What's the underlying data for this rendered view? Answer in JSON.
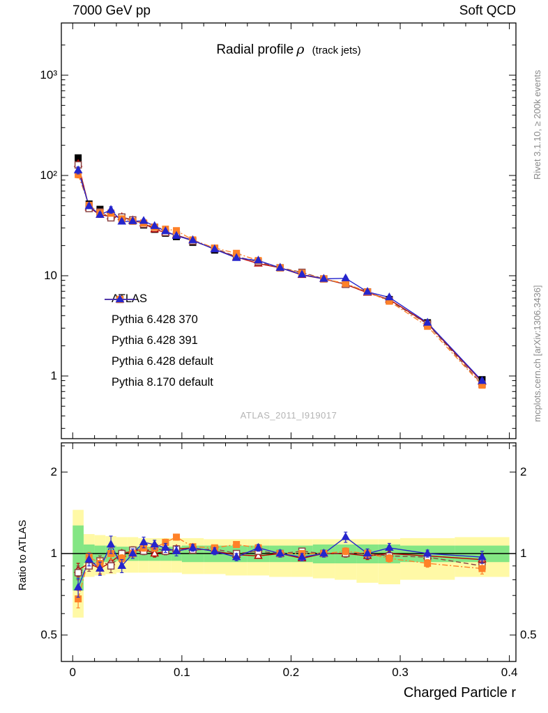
{
  "header": {
    "left": "7000 GeV pp",
    "right": "Soft QCD"
  },
  "side_texts": {
    "top_right": "Rivet 3.1.10, ≥ 200k events",
    "bottom_right": "mcplots.cern.ch [arXiv:1306.3436]"
  },
  "title": {
    "main": "Radial profile",
    "symbol": "ρ",
    "sub": "(track jets)"
  },
  "watermark": "ATLAS_2011_I919017",
  "axes": {
    "xlabel": "Charged Particle r",
    "ratio_ylabel": "Ratio to ATLAS",
    "x_ticks": [
      {
        "v": 0,
        "label": "0"
      },
      {
        "v": 0.1,
        "label": "0.1"
      },
      {
        "v": 0.2,
        "label": "0.2"
      },
      {
        "v": 0.3,
        "label": "0.3"
      },
      {
        "v": 0.4,
        "label": "0.4"
      }
    ],
    "y_ticks_main": [
      {
        "v": 1,
        "label": "1"
      },
      {
        "v": 10,
        "label": "10"
      },
      {
        "v": 100,
        "label": "10²"
      },
      {
        "v": 1000,
        "label": "10³"
      }
    ],
    "y_ticks_ratio": [
      {
        "v": 2,
        "label": "2"
      },
      {
        "v": 1,
        "label": "1"
      },
      {
        "v": 0.5,
        "label": "0.5"
      }
    ]
  },
  "chart_data": {
    "type": "line",
    "xlabel": "Charged Particle r",
    "xlim": [
      -0.0104,
      0.406
    ],
    "main_ylog": true,
    "main_ylim": [
      0.24,
      2900
    ],
    "ratio_ylog": true,
    "ratio_ylim": [
      0.4,
      2.6
    ],
    "x": [
      0.005,
      0.015,
      0.025,
      0.035,
      0.045,
      0.055,
      0.065,
      0.075,
      0.085,
      0.095,
      0.11,
      0.13,
      0.15,
      0.17,
      0.19,
      0.21,
      0.23,
      0.25,
      0.27,
      0.29,
      0.325,
      0.375
    ],
    "bin_edges": [
      0,
      0.01,
      0.02,
      0.03,
      0.04,
      0.05,
      0.06,
      0.07,
      0.08,
      0.09,
      0.1,
      0.12,
      0.14,
      0.16,
      0.18,
      0.2,
      0.22,
      0.24,
      0.26,
      0.28,
      0.3,
      0.35,
      0.4
    ],
    "reference": {
      "name": "ATLAS",
      "color": "#000000",
      "marker": "square-filled",
      "values": [
        150,
        52,
        46,
        42,
        38.5,
        35,
        32,
        29,
        26.5,
        24.5,
        21.5,
        18,
        15.5,
        13.5,
        12,
        10.6,
        9.3,
        8.2,
        6.9,
        5.8,
        3.4,
        0.92
      ],
      "rel_err": 0.04
    },
    "series": [
      {
        "name": "Pythia 6.428 370",
        "color": "#bb0000",
        "line": "solid",
        "marker": "triangle-open",
        "ratio": [
          0.87,
          0.92,
          0.88,
          0.93,
          1.0,
          1.02,
          1.04,
          1.0,
          1.02,
          1.04,
          1.05,
          1.02,
          0.99,
          0.98,
          1.0,
          0.96,
          1.0,
          1.0,
          0.98,
          1.0,
          0.98,
          0.95
        ],
        "ratio_err": [
          0.05,
          0.04,
          0.04,
          0.05,
          0.03,
          0.03,
          0.03,
          0.03,
          0.03,
          0.03,
          0.02,
          0.02,
          0.02,
          0.02,
          0.02,
          0.02,
          0.02,
          0.03,
          0.03,
          0.03,
          0.03,
          0.04
        ]
      },
      {
        "name": "Pythia 6.428 391",
        "color": "#8b4444",
        "line": "dashed",
        "marker": "square-open",
        "ratio": [
          0.85,
          0.9,
          0.94,
          0.9,
          1.0,
          1.03,
          1.02,
          1.05,
          1.02,
          1.04,
          1.03,
          1.04,
          1.0,
          1.02,
          1.0,
          1.02,
          1.0,
          1.0,
          1.0,
          0.98,
          0.97,
          0.9
        ],
        "ratio_err": [
          0.05,
          0.04,
          0.04,
          0.05,
          0.03,
          0.03,
          0.03,
          0.03,
          0.03,
          0.03,
          0.02,
          0.02,
          0.02,
          0.02,
          0.02,
          0.02,
          0.02,
          0.03,
          0.03,
          0.03,
          0.03,
          0.04
        ]
      },
      {
        "name": "Pythia 6.428 default",
        "color": "#ff8128",
        "line": "dashdot",
        "marker": "square-filled",
        "ratio": [
          0.68,
          0.97,
          0.92,
          1.0,
          0.96,
          1.0,
          1.05,
          1.05,
          1.1,
          1.15,
          1.06,
          1.05,
          1.08,
          1.05,
          1.0,
          1.0,
          1.0,
          1.02,
          1.0,
          0.96,
          0.92,
          0.88
        ],
        "ratio_err": [
          0.05,
          0.04,
          0.04,
          0.05,
          0.03,
          0.03,
          0.03,
          0.03,
          0.03,
          0.03,
          0.02,
          0.02,
          0.02,
          0.02,
          0.02,
          0.02,
          0.02,
          0.03,
          0.03,
          0.03,
          0.03,
          0.04
        ]
      },
      {
        "name": "Pythia 8.170 default",
        "color": "#2525cc",
        "line": "solid",
        "marker": "triangle-filled",
        "ratio": [
          0.75,
          0.95,
          0.88,
          1.08,
          0.9,
          1.0,
          1.1,
          1.08,
          1.05,
          1.02,
          1.05,
          1.02,
          0.97,
          1.05,
          1.0,
          0.97,
          1.0,
          1.15,
          1.0,
          1.05,
          1.0,
          0.97
        ],
        "ratio_err": [
          0.06,
          0.05,
          0.05,
          0.08,
          0.05,
          0.04,
          0.05,
          0.04,
          0.04,
          0.04,
          0.03,
          0.03,
          0.03,
          0.03,
          0.03,
          0.03,
          0.03,
          0.05,
          0.04,
          0.04,
          0.03,
          0.05
        ]
      }
    ],
    "bands": {
      "yellow_color": "#fff9a6",
      "green_color": "#84e684",
      "yellow_lo": [
        0.58,
        0.82,
        0.83,
        0.84,
        0.85,
        0.85,
        0.85,
        0.85,
        0.85,
        0.85,
        0.84,
        0.84,
        0.83,
        0.83,
        0.82,
        0.82,
        0.81,
        0.8,
        0.78,
        0.77,
        0.8,
        0.82
      ],
      "yellow_hi": [
        1.45,
        1.18,
        1.17,
        1.16,
        1.15,
        1.15,
        1.14,
        1.14,
        1.14,
        1.14,
        1.14,
        1.13,
        1.13,
        1.13,
        1.13,
        1.13,
        1.13,
        1.13,
        1.13,
        1.13,
        1.14,
        1.15
      ],
      "green_lo": [
        0.73,
        0.92,
        0.93,
        0.93,
        0.94,
        0.94,
        0.94,
        0.94,
        0.94,
        0.94,
        0.93,
        0.93,
        0.93,
        0.93,
        0.93,
        0.93,
        0.92,
        0.92,
        0.92,
        0.92,
        0.93,
        0.93
      ],
      "green_hi": [
        1.27,
        1.08,
        1.07,
        1.07,
        1.06,
        1.06,
        1.06,
        1.06,
        1.06,
        1.06,
        1.07,
        1.07,
        1.07,
        1.07,
        1.07,
        1.07,
        1.08,
        1.08,
        1.08,
        1.08,
        1.07,
        1.07
      ]
    },
    "reference_line": {
      "value": 1,
      "color": "#000000"
    }
  }
}
